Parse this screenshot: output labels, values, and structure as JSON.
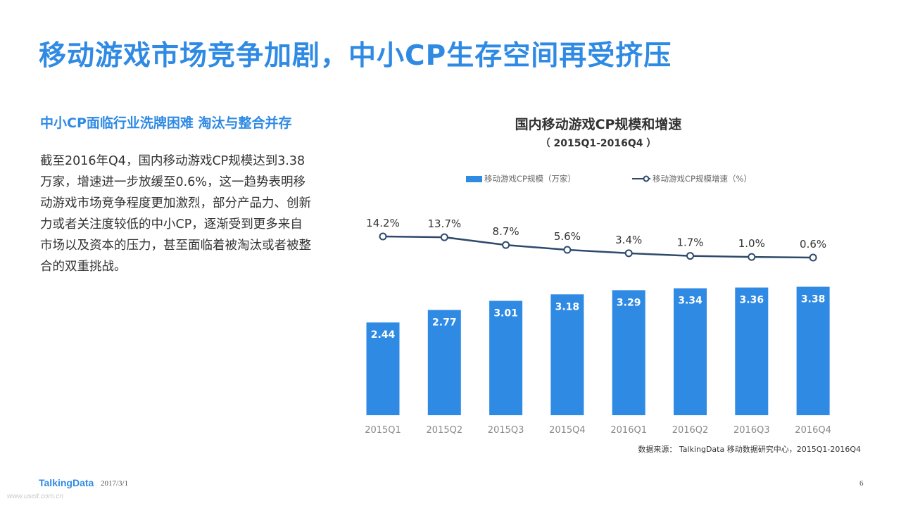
{
  "page": {
    "title": "移动游戏市场竞争加剧，中小CP生存空间再受挤压",
    "subtitle": "中小CP面临行业洗牌困难 淘汰与整合并存",
    "body": "截至2016年Q4，国内移动游戏CP规模达到3.38万家，增速进一步放缓至0.6%，这一趋势表明移动游戏市场竞争程度更加激烈，部分产品力、创新力或者关注度较低的中小CP，逐渐受到更多来自市场以及资本的压力，甚至面临着被淘汰或者被整合的双重挑战。",
    "source": "数据来源： TalkingData 移动数据研究中心，2015Q1-2016Q4",
    "logo": "TalkingData",
    "date": "2017/3/1",
    "page_number": "6",
    "watermark": "www.useit.com.cn"
  },
  "colors": {
    "accent": "#2f8ae4",
    "line": "#2e4a6b",
    "text": "#333333"
  },
  "chart_data": {
    "type": "bar",
    "title": "国内移动游戏CP规模和增速",
    "subtitle": "（ 2015Q1-2016Q4 ）",
    "categories": [
      "2015Q1",
      "2015Q2",
      "2015Q3",
      "2015Q4",
      "2016Q1",
      "2016Q2",
      "2016Q3",
      "2016Q4"
    ],
    "series": [
      {
        "name": "移动游戏CP规模（万家）",
        "type": "bar",
        "values": [
          2.44,
          2.77,
          3.01,
          3.18,
          3.29,
          3.34,
          3.36,
          3.38
        ],
        "labels": [
          "2.44",
          "2.77",
          "3.01",
          "3.18",
          "3.29",
          "3.34",
          "3.36",
          "3.38"
        ],
        "color": "#2f8ae4"
      },
      {
        "name": "移动游戏CP规模增速（%）",
        "type": "line",
        "values": [
          14.2,
          13.7,
          8.7,
          5.6,
          3.4,
          1.7,
          1.0,
          0.6
        ],
        "labels": [
          "14.2%",
          "13.7%",
          "8.7%",
          "5.6%",
          "3.4%",
          "1.7%",
          "1.0%",
          "0.6%"
        ],
        "color": "#2e4a6b"
      }
    ],
    "legend": "top",
    "grid": false
  }
}
